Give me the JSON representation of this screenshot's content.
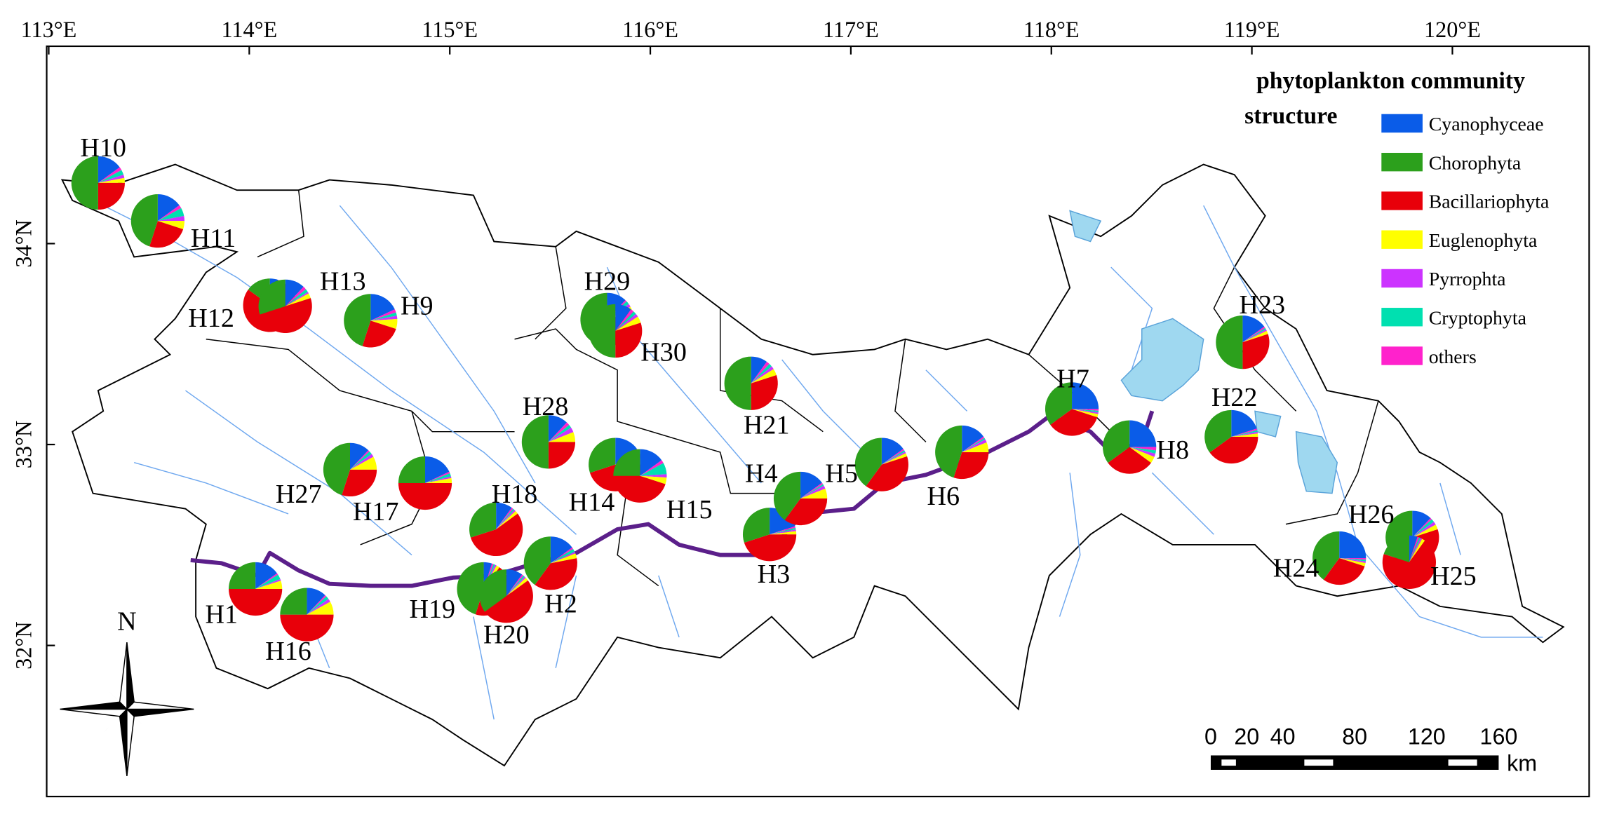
{
  "map": {
    "lon_ticks": [
      {
        "value": 113,
        "label": "113°E"
      },
      {
        "value": 114,
        "label": "114°E"
      },
      {
        "value": 115,
        "label": "115°E"
      },
      {
        "value": 116,
        "label": "116°E"
      },
      {
        "value": 117,
        "label": "117°E"
      },
      {
        "value": 118,
        "label": "118°E"
      },
      {
        "value": 119,
        "label": "119°E"
      },
      {
        "value": 120,
        "label": "120°E"
      }
    ],
    "lat_ticks": [
      {
        "value": 34,
        "label": "34°N"
      },
      {
        "value": 33,
        "label": "33°N"
      },
      {
        "value": 32,
        "label": "32°N"
      }
    ],
    "legend": {
      "title_lines": [
        "phytoplankton community",
        "structure"
      ],
      "items": [
        {
          "name": "Cyanophyceae",
          "color": "#0a5ce8"
        },
        {
          "name": "Chorophyta",
          "color": "#2ca01c"
        },
        {
          "name": "Bacillariophyta",
          "color": "#e8000a"
        },
        {
          "name": "Euglenophyta",
          "color": "#ffff00"
        },
        {
          "name": "Pyrrophta",
          "color": "#cc33ff"
        },
        {
          "name": "Cryptophyta",
          "color": "#00e0b0"
        },
        {
          "name": "others",
          "color": "#ff22cc"
        }
      ]
    },
    "sites": [
      {
        "label": "H10",
        "shares": [
          15,
          50,
          25,
          3,
          2,
          3,
          2
        ]
      },
      {
        "label": "H11",
        "shares": [
          15,
          45,
          25,
          5,
          3,
          5,
          2
        ]
      },
      {
        "label": "H12",
        "shares": [
          5,
          15,
          75,
          2,
          1,
          1,
          1
        ]
      },
      {
        "label": "H13",
        "shares": [
          12,
          30,
          50,
          3,
          1,
          2,
          2
        ]
      },
      {
        "label": "H9",
        "shares": [
          18,
          45,
          25,
          6,
          2,
          2,
          2
        ]
      },
      {
        "label": "H29",
        "shares": [
          12,
          55,
          25,
          3,
          2,
          2,
          1
        ]
      },
      {
        "label": "H30",
        "shares": [
          10,
          50,
          30,
          4,
          2,
          2,
          2
        ]
      },
      {
        "label": "H21",
        "shares": [
          10,
          50,
          30,
          4,
          2,
          2,
          2
        ]
      },
      {
        "label": "H28",
        "shares": [
          12,
          50,
          25,
          6,
          3,
          2,
          2
        ]
      },
      {
        "label": "H14",
        "shares": [
          15,
          30,
          45,
          4,
          2,
          2,
          2
        ]
      },
      {
        "label": "H15",
        "shares": [
          15,
          25,
          45,
          4,
          2,
          7,
          2
        ]
      },
      {
        "label": "H27",
        "shares": [
          12,
          45,
          30,
          8,
          2,
          2,
          1
        ]
      },
      {
        "label": "H17",
        "shares": [
          18,
          25,
          50,
          3,
          1,
          2,
          1
        ]
      },
      {
        "label": "H18",
        "shares": [
          10,
          30,
          55,
          2,
          1,
          1,
          1
        ]
      },
      {
        "label": "H1",
        "shares": [
          15,
          25,
          50,
          5,
          1,
          3,
          1
        ]
      },
      {
        "label": "H16",
        "shares": [
          12,
          25,
          50,
          8,
          2,
          2,
          1
        ]
      },
      {
        "label": "H19",
        "shares": [
          5,
          45,
          45,
          2,
          1,
          1,
          1
        ]
      },
      {
        "label": "H20",
        "shares": [
          10,
          35,
          50,
          2,
          1,
          1,
          1
        ]
      },
      {
        "label": "H2",
        "shares": [
          15,
          40,
          38,
          3,
          1,
          2,
          1
        ]
      },
      {
        "label": "H3",
        "shares": [
          20,
          30,
          45,
          2,
          1,
          1,
          1
        ]
      },
      {
        "label": "H4",
        "shares": [
          15,
          40,
          35,
          6,
          2,
          1,
          1
        ]
      },
      {
        "label": "H5",
        "shares": [
          15,
          40,
          40,
          2,
          1,
          1,
          1
        ]
      },
      {
        "label": "H6",
        "shares": [
          15,
          45,
          30,
          6,
          2,
          1,
          1
        ]
      },
      {
        "label": "H7",
        "shares": [
          25,
          35,
          35,
          2,
          1,
          1,
          1
        ]
      },
      {
        "label": "H8",
        "shares": [
          25,
          35,
          30,
          4,
          2,
          2,
          2
        ]
      },
      {
        "label": "H22",
        "shares": [
          20,
          35,
          40,
          2,
          1,
          1,
          1
        ]
      },
      {
        "label": "H23",
        "shares": [
          15,
          50,
          30,
          2,
          1,
          1,
          1
        ]
      },
      {
        "label": "H24",
        "shares": [
          25,
          40,
          30,
          2,
          1,
          1,
          1
        ]
      },
      {
        "label": "H26",
        "shares": [
          12,
          50,
          30,
          3,
          2,
          2,
          1
        ]
      },
      {
        "label": "H25",
        "shares": [
          5,
          20,
          70,
          2,
          1,
          1,
          1
        ]
      }
    ],
    "north_label": "N",
    "scale_bar": {
      "ticks": [
        0,
        20,
        40,
        80,
        120,
        160
      ],
      "max": 160,
      "unit": "km"
    }
  }
}
